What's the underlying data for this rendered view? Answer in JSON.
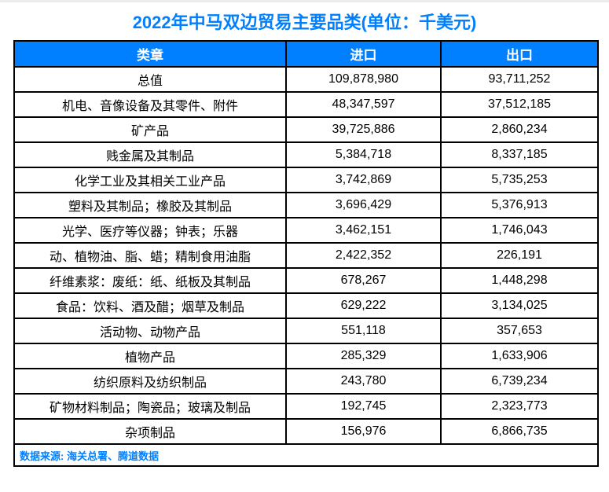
{
  "title": "2022年中马双边贸易主要品类(单位：千美元)",
  "colors": {
    "accent_blue": "#0080FF",
    "border_black": "#000000",
    "top_strip_gray": "#ECECEC",
    "header_text": "#FFFFFF"
  },
  "table": {
    "columns": [
      "类章",
      "进口",
      "出口"
    ],
    "rows": [
      {
        "label": "总值",
        "import": "109,878,980",
        "export": "93,711,252"
      },
      {
        "label": "机电、音像设备及其零件、附件",
        "import": "48,347,597",
        "export": "37,512,185"
      },
      {
        "label": "矿产品",
        "import": "39,725,886",
        "export": "2,860,234"
      },
      {
        "label": "贱金属及其制品",
        "import": "5,384,718",
        "export": "8,337,185"
      },
      {
        "label": "化学工业及其相关工业产品",
        "import": "3,742,869",
        "export": "5,735,253"
      },
      {
        "label": "塑料及其制品；橡胶及其制品",
        "import": "3,696,429",
        "export": "5,376,913"
      },
      {
        "label": "光学、医疗等仪器；钟表；乐器",
        "import": "3,462,151",
        "export": "1,746,043"
      },
      {
        "label": "动、植物油、脂、蜡；精制食用油脂",
        "import": "2,422,352",
        "export": "226,191"
      },
      {
        "label": "纤维素浆：废纸：纸、纸板及其制品",
        "import": "678,267",
        "export": "1,448,298"
      },
      {
        "label": "食品：饮料、酒及醋；烟草及制品",
        "import": "629,222",
        "export": "3,134,025"
      },
      {
        "label": "活动物、动物产品",
        "import": "551,118",
        "export": "357,653"
      },
      {
        "label": "植物产品",
        "import": "285,329",
        "export": "1,633,906"
      },
      {
        "label": "纺织原料及纺织制品",
        "import": "243,780",
        "export": "6,739,234"
      },
      {
        "label": "矿物材料制品；陶瓷品；玻璃及制品",
        "import": "192,745",
        "export": "2,323,773"
      },
      {
        "label": "杂项制品",
        "import": "156,976",
        "export": "6,866,735"
      }
    ]
  },
  "footer": {
    "source": "数据来源: 海关总署、腾道数据"
  },
  "chart_data": {
    "type": "table",
    "title": "2022年中马双边贸易主要品类(单位：千美元)",
    "unit": "千美元",
    "columns": [
      "类章",
      "进口",
      "出口"
    ],
    "categories": [
      "总值",
      "机电、音像设备及其零件、附件",
      "矿产品",
      "贱金属及其制品",
      "化学工业及其相关工业产品",
      "塑料及其制品；橡胶及其制品",
      "光学、医疗等仪器；钟表；乐器",
      "动、植物油、脂、蜡；精制食用油脂",
      "纤维素浆：废纸：纸、纸板及其制品",
      "食品：饮料、酒及醋；烟草及制品",
      "活动物、动物产品",
      "植物产品",
      "纺织原料及纺织制品",
      "矿物材料制品；陶瓷品；玻璃及制品",
      "杂项制品"
    ],
    "series": [
      {
        "name": "进口",
        "values": [
          109878980,
          48347597,
          39725886,
          5384718,
          3742869,
          3696429,
          3462151,
          2422352,
          678267,
          629222,
          551118,
          285329,
          243780,
          192745,
          156976
        ]
      },
      {
        "name": "出口",
        "values": [
          93711252,
          37512185,
          2860234,
          8337185,
          5735253,
          5376913,
          1746043,
          226191,
          1448298,
          3134025,
          357653,
          1633906,
          6739234,
          2323773,
          6866735
        ]
      }
    ],
    "source": "数据来源: 海关总署、腾道数据"
  }
}
